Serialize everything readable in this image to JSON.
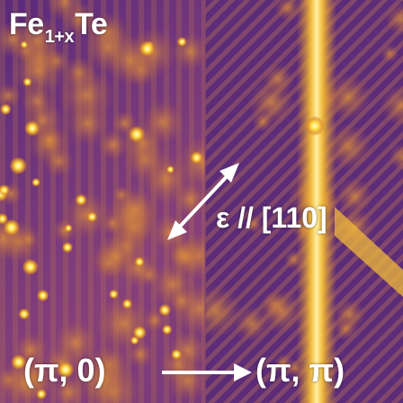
{
  "title": {
    "base": "Fe",
    "subscript": "1+x",
    "suffix": "Te"
  },
  "strain_label": "ε // [110]",
  "phase_start": "(π, 0)",
  "phase_end": "(π, π)",
  "colors": {
    "background_dark": "#3a1e6e",
    "background_mid": "#7e3b7e",
    "highlight_orange": "#d88a2a",
    "highlight_yellow": "#ffe34a",
    "text": "#ffffff",
    "arrow": "#ffffff"
  }
}
